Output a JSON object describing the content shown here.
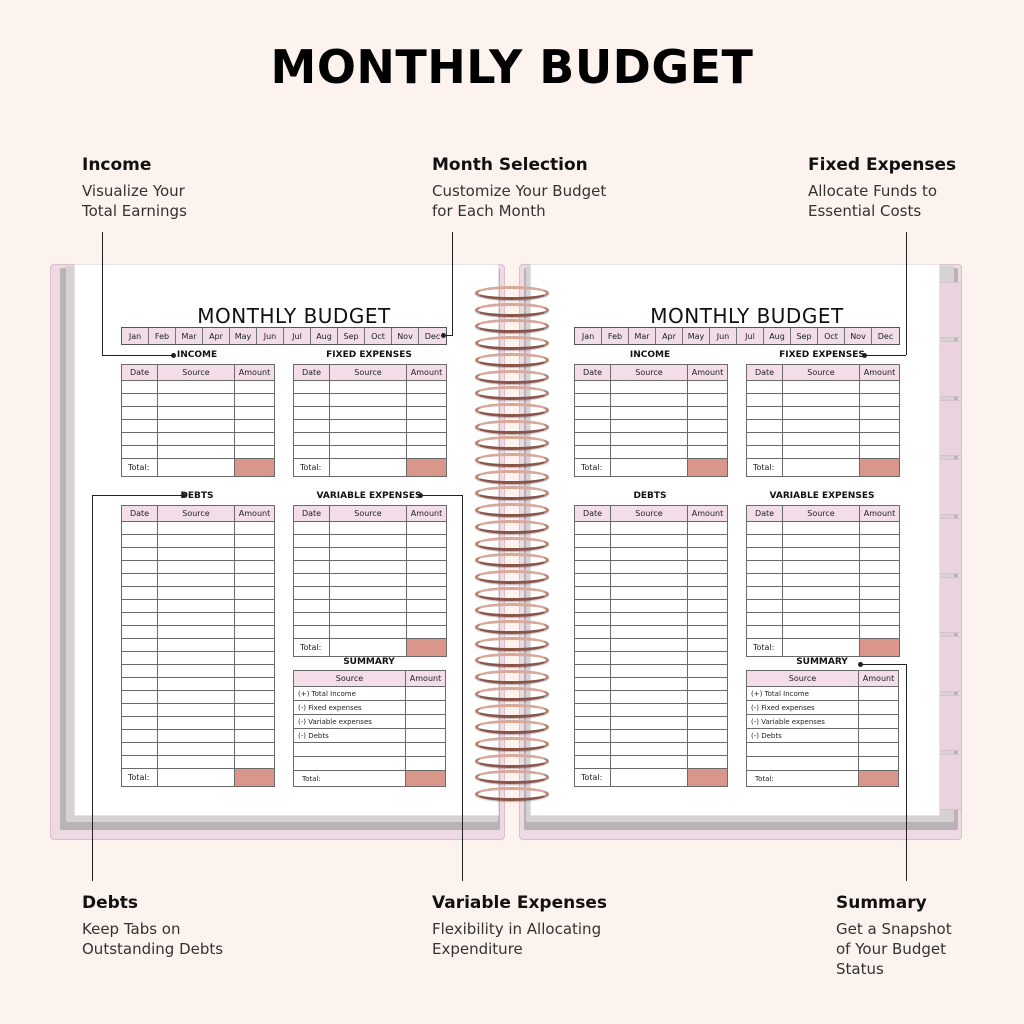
{
  "page_title": "MONTHLY BUDGET",
  "callouts": {
    "income": {
      "title": "Income",
      "desc": "Visualize Your\nTotal Earnings"
    },
    "month_selection": {
      "title": "Month Selection",
      "desc": "Customize Your Budget\nfor Each Month"
    },
    "fixed_expenses": {
      "title": "Fixed Expenses",
      "desc": "Allocate Funds to\nEssential Costs"
    },
    "debts": {
      "title": "Debts",
      "desc": "Keep Tabs on\nOutstanding Debts"
    },
    "variable_expenses": {
      "title": "Variable Expenses",
      "desc": "Flexibility in Allocating\nExpenditure"
    },
    "summary": {
      "title": "Summary",
      "desc": "Get a Snapshot\nof Your Budget\nStatus"
    }
  },
  "planner": {
    "title": "MONTHLY BUDGET",
    "months": [
      "Jan",
      "Feb",
      "Mar",
      "Apr",
      "May",
      "Jun",
      "Jul",
      "Aug",
      "Sep",
      "Oct",
      "Nov",
      "Dec"
    ],
    "sections": {
      "income": "INCOME",
      "fixed": "FIXED EXPENSES",
      "debts": "DEBTS",
      "variable": "VARIABLE EXPENSES",
      "summary": "SUMMARY"
    },
    "columns": {
      "date": "Date",
      "source": "Source",
      "amount": "Amount"
    },
    "total_label": "Total:",
    "summary_items": [
      "(+) Total Income",
      "(-) Fixed expenses",
      "(-) Variable expenses",
      "(-) Debts"
    ]
  },
  "colors": {
    "background": "#fcf2ee",
    "cover": "#eed9e4",
    "header_fill": "#f2dde8",
    "total_fill": "#d9968b",
    "ring": "#b9806f"
  }
}
